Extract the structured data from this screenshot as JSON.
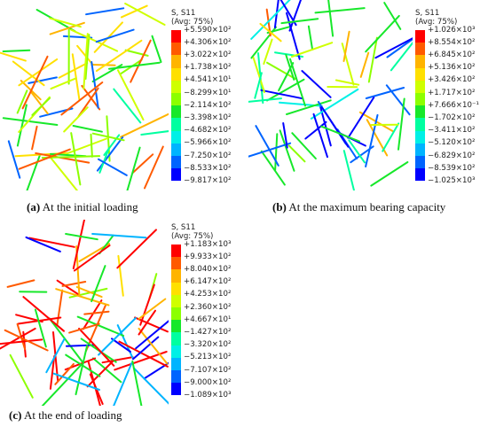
{
  "colormap": [
    "#ff0000",
    "#ff5a00",
    "#ffb400",
    "#ffe000",
    "#cfff00",
    "#8cff00",
    "#17e82a",
    "#00ffa0",
    "#00f0e6",
    "#00b4ff",
    "#0064ff",
    "#0000ff"
  ],
  "panels": [
    {
      "id": "a",
      "legend": {
        "title": "S, S11",
        "subtitle": "(Avg: 75%)",
        "values": [
          "+5.590×10²",
          "+4.306×10²",
          "+3.022×10²",
          "+1.738×10²",
          "+4.541×10¹",
          "−8.299×10¹",
          "−2.114×10²",
          "−3.398×10²",
          "−4.682×10²",
          "−5.966×10²",
          "−7.250×10²",
          "−8.533×10²",
          "−9.817×10²"
        ]
      },
      "caption_letter": "(a)",
      "caption_text": " At the initial loading"
    },
    {
      "id": "b",
      "legend": {
        "title": "S, S11",
        "subtitle": "(Avg: 75%)",
        "values": [
          "+1.026×10³",
          "+8.554×10²",
          "+6.845×10²",
          "+5.136×10²",
          "+3.426×10²",
          "+1.717×10²",
          "+7.666×10⁻¹",
          "−1.702×10²",
          "−3.411×10²",
          "−5.120×10²",
          "−6.829×10²",
          "−8.539×10²",
          "−1.025×10³"
        ]
      },
      "caption_letter": "(b)",
      "caption_text": " At the maximum bearing capacity"
    },
    {
      "id": "c",
      "legend": {
        "title": "S, S11",
        "subtitle": "(Avg: 75%)",
        "values": [
          "+1.183×10³",
          "+9.933×10²",
          "+8.040×10²",
          "+6.147×10²",
          "+4.253×10²",
          "+2.360×10²",
          "+4.667×10¹",
          "−1.427×10²",
          "−3.320×10²",
          "−5.213×10²",
          "−7.107×10²",
          "−9.000×10²",
          "−1.089×10³"
        ]
      },
      "caption_letter": "(c)",
      "caption_text": " At the end of loading"
    }
  ]
}
